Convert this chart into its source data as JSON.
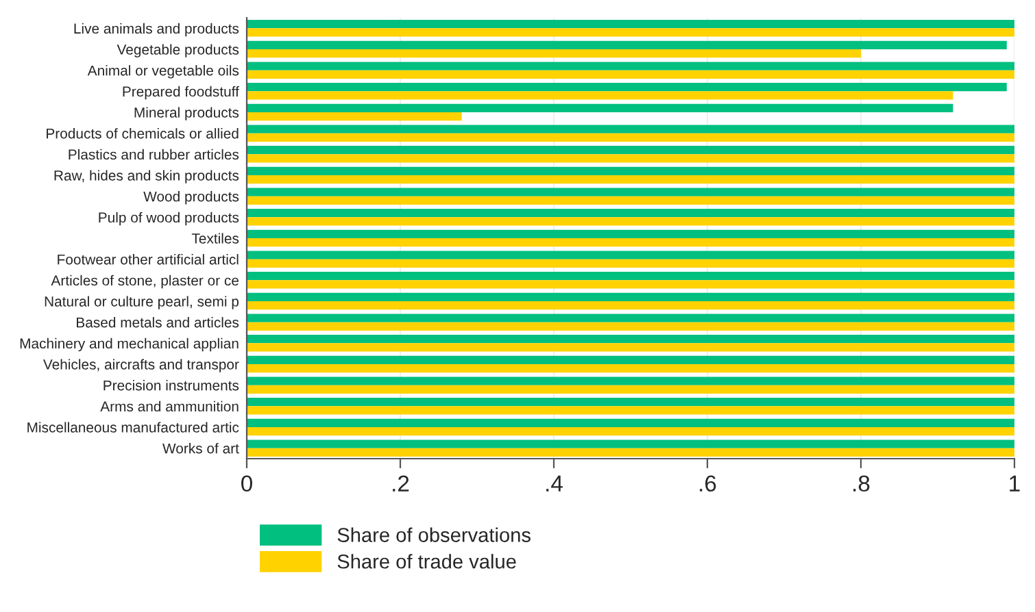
{
  "chart_data": {
    "type": "bar",
    "orientation": "horizontal",
    "categories": [
      "Live animals and products",
      "Vegetable products",
      "Animal or vegetable oils",
      "Prepared foodstuff",
      "Mineral products",
      "Products of chemicals or allied",
      "Plastics and rubber articles",
      "Raw, hides and skin products",
      "Wood products",
      "Pulp of wood products",
      "Textiles",
      "Footwear other artificial articl",
      "Articles of stone, plaster or ce",
      "Natural or culture pearl, semi p",
      "Based metals and articles",
      "Machinery and mechanical applian",
      "Vehicles, aircrafts and transpor",
      "Precision instruments",
      "Arms and ammunition",
      "Miscellaneous manufactured artic",
      "Works of art"
    ],
    "series": [
      {
        "name": "Share of observations",
        "color": "#00bf7f",
        "values": [
          1,
          0.99,
          1,
          0.99,
          0.92,
          1,
          1,
          1,
          1,
          1,
          1,
          1,
          1,
          1,
          1,
          1,
          1,
          1,
          1,
          1,
          1
        ]
      },
      {
        "name": "Share of trade value",
        "color": "#ffd200",
        "values": [
          1,
          0.8,
          1,
          0.92,
          0.28,
          1,
          1,
          1,
          1,
          1,
          1,
          1,
          1,
          1,
          1,
          1,
          1,
          1,
          1,
          1,
          1
        ]
      }
    ],
    "xlim": [
      0,
      1
    ],
    "xticks": [
      0,
      {
        "value": 0.2,
        "label": ".2"
      },
      {
        "value": 0.4,
        "label": ".4"
      },
      {
        "value": 0.6,
        "label": ".6"
      },
      {
        "value": 0.8,
        "label": ".8"
      },
      1
    ],
    "grid": "x",
    "legend": "bottom"
  }
}
